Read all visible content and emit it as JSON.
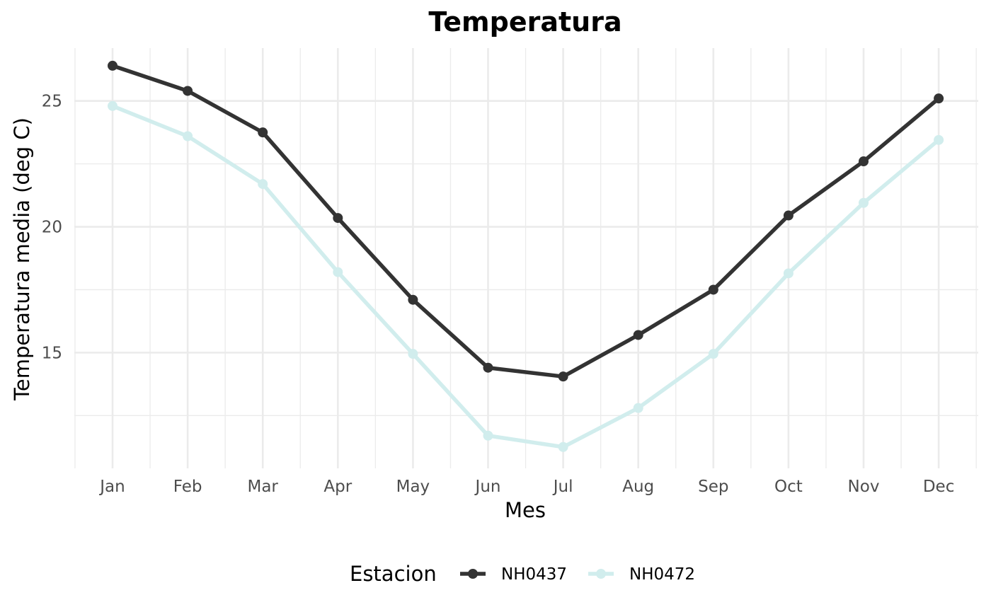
{
  "chart_data": {
    "type": "line",
    "title": "Temperatura",
    "xlabel": "Mes",
    "ylabel": "Temperatura media (deg C)",
    "categories": [
      "Jan",
      "Feb",
      "Mar",
      "Apr",
      "May",
      "Jun",
      "Jul",
      "Aug",
      "Sep",
      "Oct",
      "Nov",
      "Dec"
    ],
    "y_ticks": [
      "15",
      "20",
      "25"
    ],
    "ylim": [
      10.4,
      27.1
    ],
    "grid": true,
    "legend": {
      "title": "Estacion",
      "position": "bottom"
    },
    "series": [
      {
        "name": "NH0437",
        "color": "#333333",
        "values": [
          26.4,
          25.4,
          23.75,
          20.35,
          17.1,
          14.4,
          14.05,
          15.7,
          17.5,
          20.45,
          22.6,
          25.1
        ]
      },
      {
        "name": "NH0472",
        "color": "#d1eded",
        "values": [
          24.8,
          23.6,
          21.7,
          18.2,
          14.95,
          11.7,
          11.25,
          12.8,
          14.95,
          18.15,
          20.95,
          23.45
        ]
      }
    ]
  }
}
